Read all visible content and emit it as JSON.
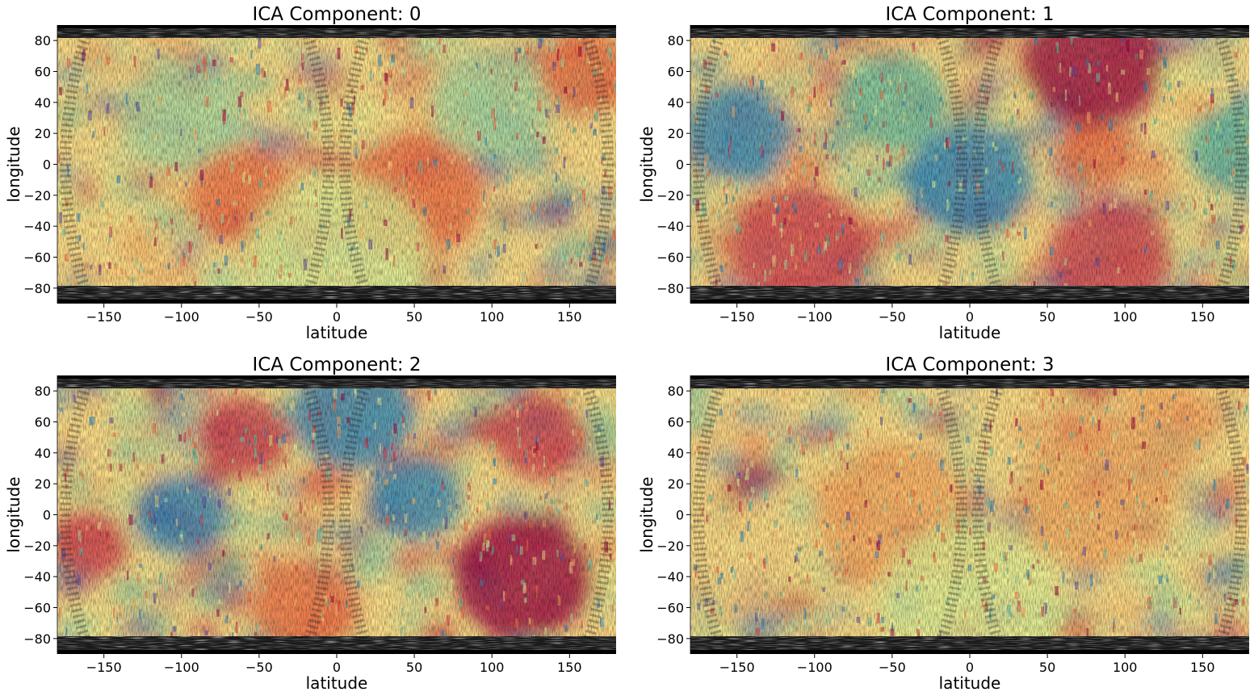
{
  "chart_data": [
    {
      "type": "heatmap",
      "title": "ICA Component: 0",
      "xlabel": "latitude",
      "ylabel": "longitude",
      "xlim": [
        -180,
        180
      ],
      "ylim": [
        -90,
        90
      ],
      "xticks": [
        -150,
        -100,
        -50,
        0,
        50,
        100,
        150
      ],
      "yticks": [
        -80,
        -60,
        -40,
        -20,
        0,
        20,
        40,
        60,
        80
      ],
      "colormap": [
        "#5e4fa2",
        "#3288bd",
        "#66c2a5",
        "#abdda4",
        "#e6f598",
        "#fee08b",
        "#fdae61",
        "#f46d43",
        "#d53e4f",
        "#9e0142"
      ],
      "overlay": "grayscale planetary texture map",
      "blobs": [
        {
          "x": -100,
          "y": 30,
          "r": 40,
          "v": 0.3
        },
        {
          "x": -60,
          "y": -20,
          "r": 35,
          "v": 0.75
        },
        {
          "x": 50,
          "y": -20,
          "r": 45,
          "v": 0.75
        },
        {
          "x": 100,
          "y": 40,
          "r": 40,
          "v": 0.35
        },
        {
          "x": 0,
          "y": -60,
          "r": 60,
          "v": 0.45
        },
        {
          "x": 160,
          "y": 60,
          "r": 30,
          "v": 0.8
        }
      ]
    },
    {
      "type": "heatmap",
      "title": "ICA Component: 1",
      "xlabel": "latitude",
      "ylabel": "longitude",
      "xlim": [
        -180,
        180
      ],
      "ylim": [
        -90,
        90
      ],
      "xticks": [
        -150,
        -100,
        -50,
        0,
        50,
        100,
        150
      ],
      "yticks": [
        -80,
        -60,
        -40,
        -20,
        0,
        20,
        40,
        60,
        80
      ],
      "colormap": [
        "#5e4fa2",
        "#3288bd",
        "#66c2a5",
        "#abdda4",
        "#e6f598",
        "#fee08b",
        "#fdae61",
        "#f46d43",
        "#d53e4f",
        "#9e0142"
      ],
      "overlay": "grayscale planetary texture map",
      "blobs": [
        {
          "x": 80,
          "y": 65,
          "r": 45,
          "v": 0.95
        },
        {
          "x": -110,
          "y": -55,
          "r": 45,
          "v": 0.92
        },
        {
          "x": 90,
          "y": -60,
          "r": 40,
          "v": 0.88
        },
        {
          "x": 0,
          "y": -10,
          "r": 40,
          "v": 0.1
        },
        {
          "x": -150,
          "y": 20,
          "r": 35,
          "v": 0.15
        },
        {
          "x": -50,
          "y": 40,
          "r": 35,
          "v": 0.25
        },
        {
          "x": 170,
          "y": 10,
          "r": 30,
          "v": 0.2
        },
        {
          "x": 80,
          "y": 5,
          "r": 25,
          "v": 0.75
        }
      ]
    },
    {
      "type": "heatmap",
      "title": "ICA Component: 2",
      "xlabel": "latitude",
      "ylabel": "longitude",
      "xlim": [
        -180,
        180
      ],
      "ylim": [
        -90,
        90
      ],
      "xticks": [
        -150,
        -100,
        -50,
        0,
        50,
        100,
        150
      ],
      "yticks": [
        -80,
        -60,
        -40,
        -20,
        0,
        20,
        40,
        60,
        80
      ],
      "colormap": [
        "#5e4fa2",
        "#3288bd",
        "#66c2a5",
        "#abdda4",
        "#e6f598",
        "#fee08b",
        "#fdae61",
        "#f46d43",
        "#d53e4f",
        "#9e0142"
      ],
      "overlay": "grayscale planetary texture map",
      "blobs": [
        {
          "x": 10,
          "y": 65,
          "r": 40,
          "v": 0.1
        },
        {
          "x": 120,
          "y": -40,
          "r": 45,
          "v": 0.95
        },
        {
          "x": -60,
          "y": 50,
          "r": 30,
          "v": 0.9
        },
        {
          "x": -100,
          "y": 0,
          "r": 30,
          "v": 0.1
        },
        {
          "x": 50,
          "y": 10,
          "r": 30,
          "v": 0.15
        },
        {
          "x": -160,
          "y": -20,
          "r": 25,
          "v": 0.85
        },
        {
          "x": 130,
          "y": 50,
          "r": 30,
          "v": 0.85
        },
        {
          "x": -20,
          "y": -60,
          "r": 35,
          "v": 0.8
        }
      ]
    },
    {
      "type": "heatmap",
      "title": "ICA Component: 3",
      "xlabel": "latitude",
      "ylabel": "longitude",
      "xlim": [
        -180,
        180
      ],
      "ylim": [
        -90,
        90
      ],
      "xticks": [
        -150,
        -100,
        -50,
        0,
        50,
        100,
        150
      ],
      "yticks": [
        -80,
        -60,
        -40,
        -20,
        0,
        20,
        40,
        60,
        80
      ],
      "colormap": [
        "#5e4fa2",
        "#3288bd",
        "#66c2a5",
        "#abdda4",
        "#e6f598",
        "#fee08b",
        "#fdae61",
        "#f46d43",
        "#d53e4f",
        "#9e0142"
      ],
      "overlay": "grayscale planetary texture map",
      "blobs": [
        {
          "x": -50,
          "y": 0,
          "r": 50,
          "v": 0.72
        },
        {
          "x": 80,
          "y": 10,
          "r": 50,
          "v": 0.72
        },
        {
          "x": 0,
          "y": -60,
          "r": 60,
          "v": 0.4
        },
        {
          "x": -140,
          "y": -30,
          "r": 35,
          "v": 0.5
        },
        {
          "x": 130,
          "y": 60,
          "r": 30,
          "v": 0.65
        }
      ]
    }
  ]
}
